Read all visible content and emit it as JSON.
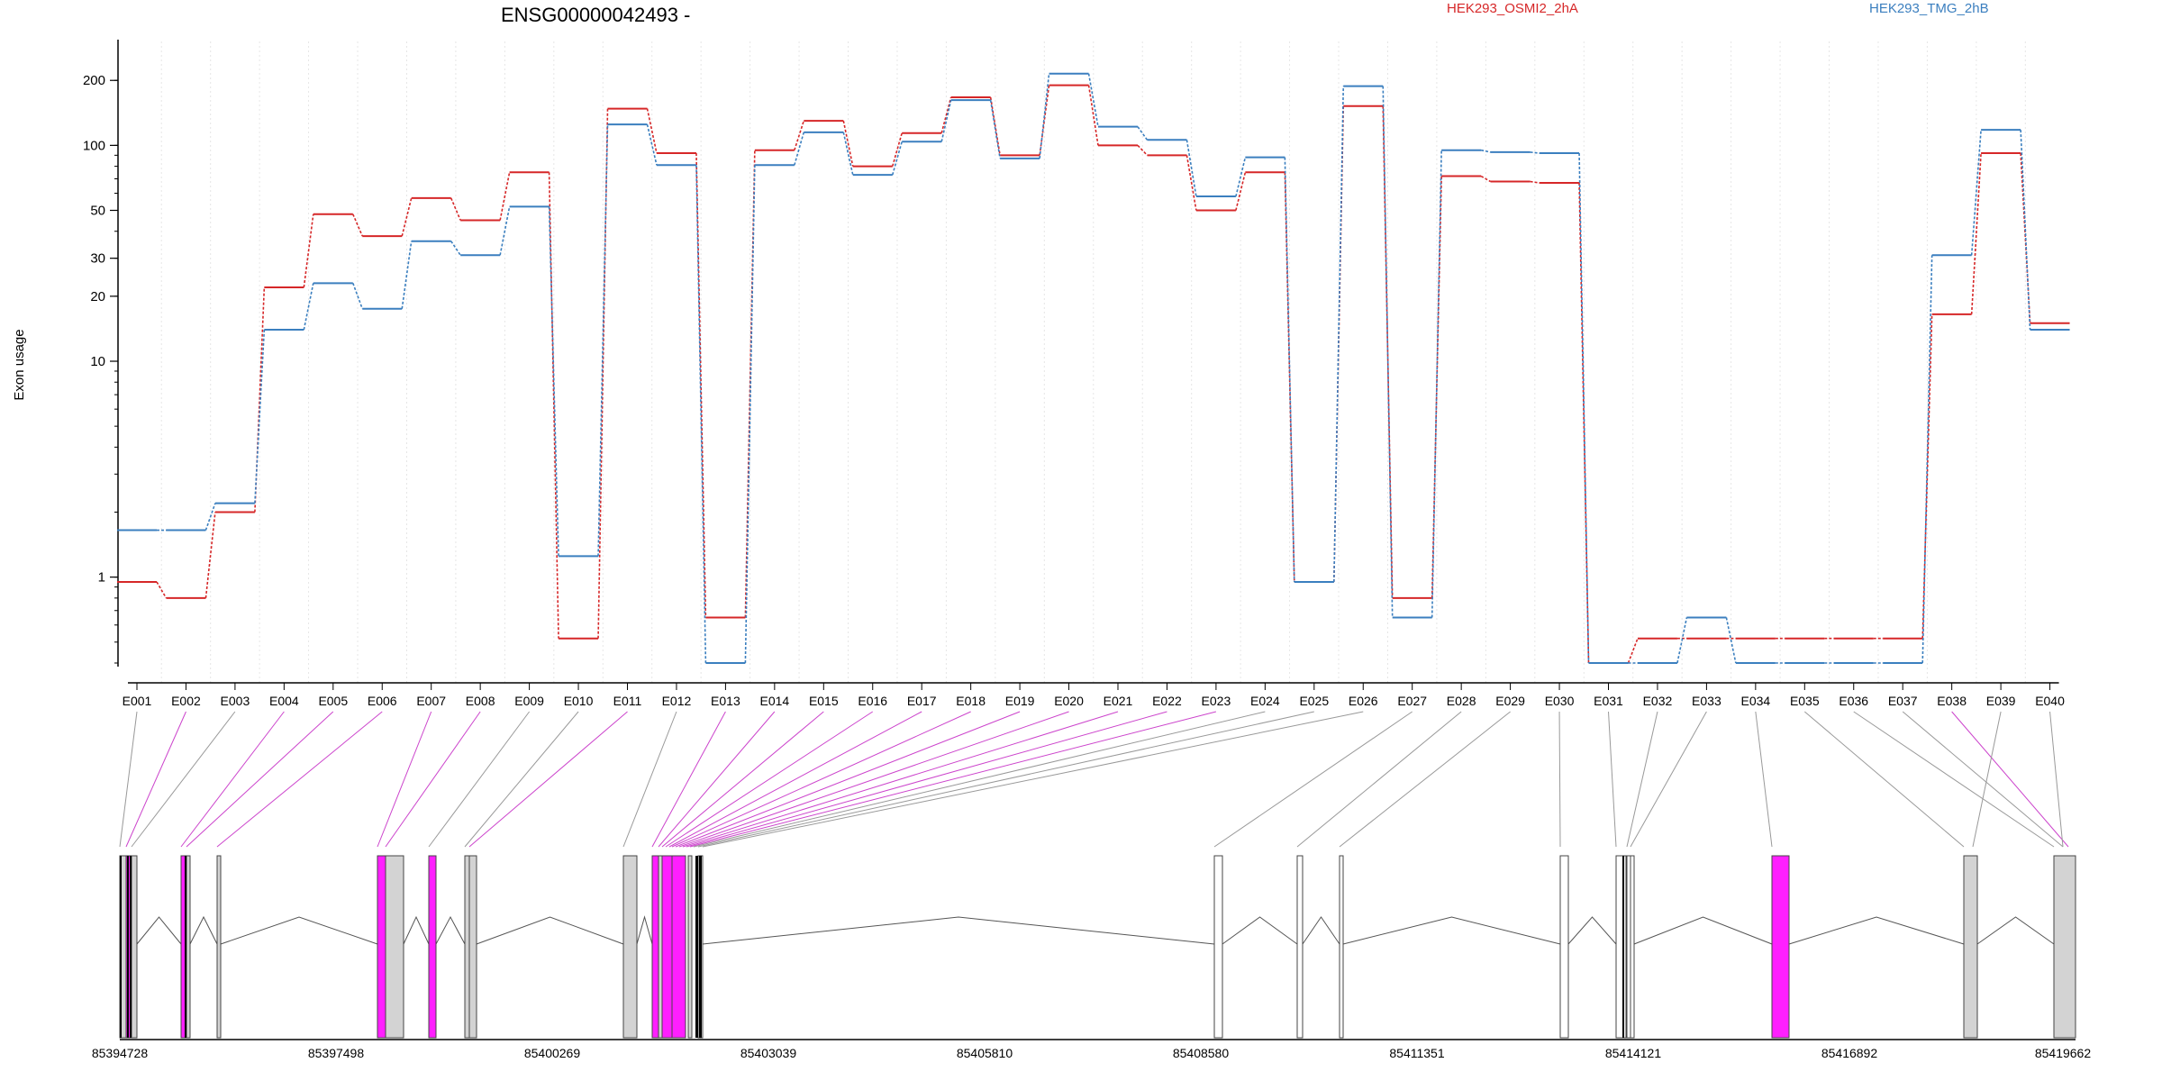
{
  "chart_data": {
    "type": "line",
    "title": "ENSG00000042493 -",
    "ylabel": "Exon usage",
    "yscale": "log",
    "ylim": [
      0.4,
      270
    ],
    "yticks": [
      1,
      10,
      20,
      30,
      50,
      100,
      200
    ],
    "ytick_labels": [
      "1",
      "10",
      "20",
      "30",
      "50",
      "100",
      "200"
    ],
    "grid": "vertical, light dotted",
    "legend_position": "top-right",
    "categories": [
      "E001",
      "E002",
      "E003",
      "E004",
      "E005",
      "E006",
      "E007",
      "E008",
      "E009",
      "E010",
      "E011",
      "E012",
      "E013",
      "E014",
      "E015",
      "E016",
      "E017",
      "E018",
      "E019",
      "E020",
      "E021",
      "E022",
      "E023",
      "E024",
      "E025",
      "E026",
      "E027",
      "E028",
      "E029",
      "E030",
      "E031",
      "E032",
      "E033",
      "E034",
      "E035",
      "E036",
      "E037",
      "E038",
      "E039",
      "E040"
    ],
    "series": [
      {
        "name": "HEK293_OSMI2_2hA",
        "color": "#d62728",
        "values": [
          0.95,
          0.8,
          2.0,
          22,
          48,
          38,
          57,
          45,
          75,
          0.52,
          148,
          92,
          0.65,
          95,
          130,
          80,
          114,
          167,
          90,
          190,
          100,
          90,
          50,
          75,
          0.95,
          152,
          0.8,
          72,
          68,
          67,
          0.4,
          0.52,
          0.52,
          0.52,
          0.52,
          0.52,
          0.52,
          16.5,
          92,
          15
        ]
      },
      {
        "name": "HEK293_TMG_2hB",
        "color": "#3b7fbf",
        "values": [
          1.65,
          1.65,
          2.2,
          14,
          23,
          17.5,
          36,
          31,
          52,
          1.25,
          125,
          81,
          0.4,
          81,
          115,
          73,
          104,
          162,
          87,
          215,
          122,
          106,
          58,
          88,
          0.95,
          188,
          0.65,
          95,
          93,
          92,
          0.4,
          0.4,
          0.65,
          0.4,
          0.4,
          0.4,
          0.4,
          31,
          118,
          14
        ]
      }
    ],
    "highlighted_exons": [
      "E002",
      "E004",
      "E005",
      "E006",
      "E007",
      "E008",
      "E011",
      "E013",
      "E014",
      "E015",
      "E016",
      "E017",
      "E018",
      "E019",
      "E020",
      "E021",
      "E022",
      "E023",
      "E038"
    ],
    "genomic_axis": {
      "tick_labels": [
        "85394728",
        "85397498",
        "85400269",
        "85403039",
        "85405810",
        "85408580",
        "85411351",
        "85414121",
        "85416892",
        "85419662"
      ]
    },
    "colors": {
      "highlight": "#ff1fff",
      "exon_fill": "#d3d3d3",
      "connector_gray": "#999999",
      "connector_magenta": "#cc44cc"
    }
  }
}
